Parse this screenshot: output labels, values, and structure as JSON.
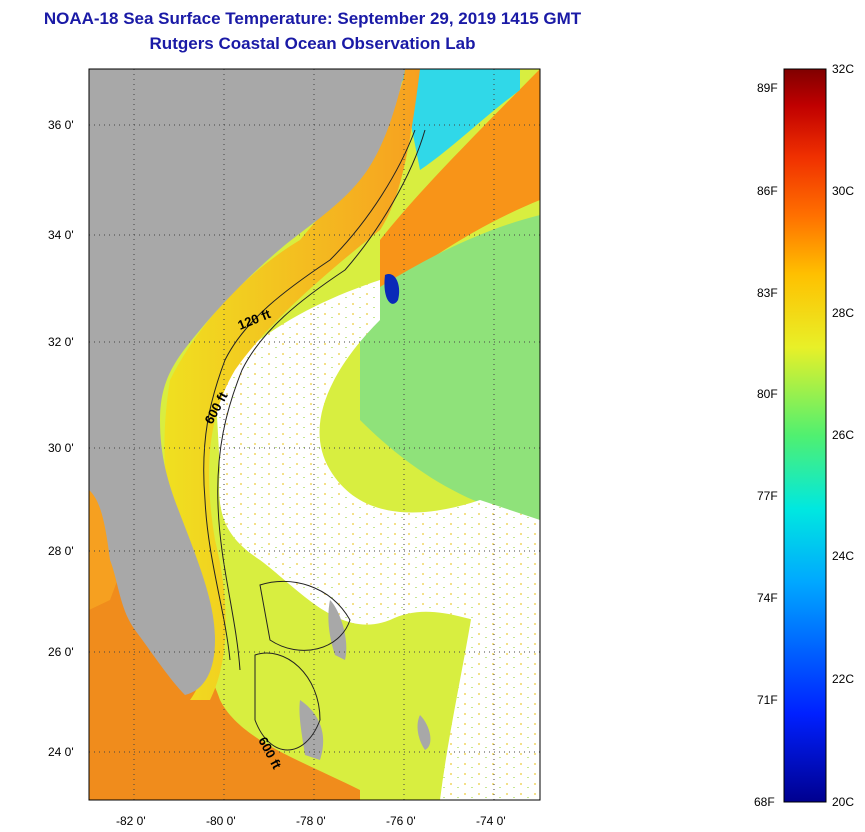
{
  "header": {
    "title": "NOAA-18 Sea Surface Temperature:  September 29, 2019 1415 GMT",
    "subtitle": "Rutgers Coastal Ocean Observation Lab"
  },
  "map": {
    "lat_ticks": [
      "36 0'",
      "34 0'",
      "32 0'",
      "30 0'",
      "28 0'",
      "26 0'",
      "24 0'"
    ],
    "lon_ticks": [
      "-82 0'",
      "-80 0'",
      "-78 0'",
      "-76 0'",
      "-74 0'"
    ],
    "lat_range": [
      23,
      37.1
    ],
    "lon_range": [
      -83,
      -73
    ],
    "isobaths": [
      "120 ft",
      "600 ft",
      "600 ft"
    ],
    "colors": {
      "land": "#a8a8a8",
      "cloud": "#ffffff",
      "grid": "#444444"
    }
  },
  "colorbar": {
    "fahrenheit_labels": [
      "89F",
      "86F",
      "83F",
      "80F",
      "77F",
      "74F",
      "71F",
      "68F"
    ],
    "celsius_labels": [
      "32C",
      "30C",
      "28C",
      "26C",
      "24C",
      "22C",
      "20C"
    ],
    "range_c": [
      20,
      32
    ]
  }
}
